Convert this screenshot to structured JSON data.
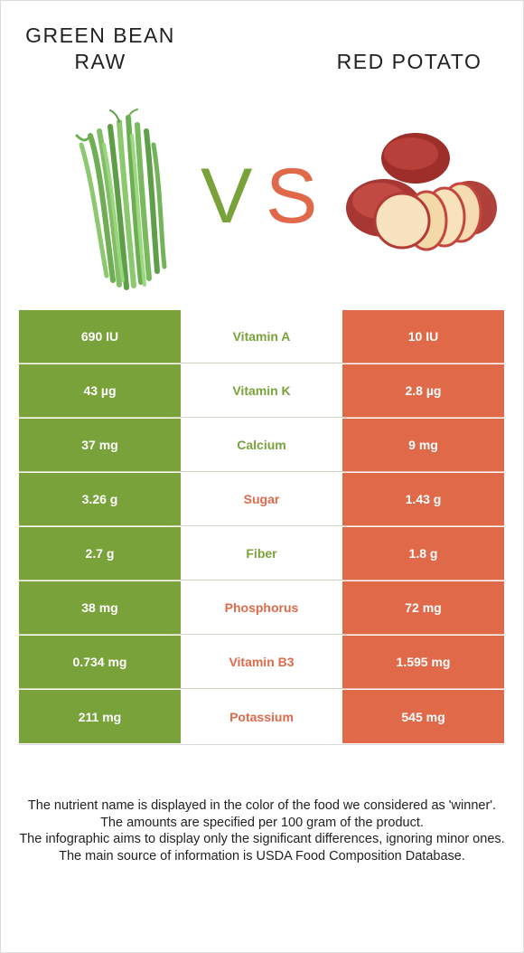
{
  "left_food": {
    "line1": "GREEN BEAN",
    "line2": "RAW"
  },
  "right_food": {
    "name": "RED POTATO"
  },
  "vs": {
    "v": "V",
    "s": "S"
  },
  "colors": {
    "green": "#79a23a",
    "red": "#e0694a"
  },
  "rows": [
    {
      "left": "690 IU",
      "nutrient": "Vitamin A",
      "right": "10 IU",
      "winner": "green"
    },
    {
      "left": "43 µg",
      "nutrient": "Vitamin K",
      "right": "2.8 µg",
      "winner": "green"
    },
    {
      "left": "37 mg",
      "nutrient": "Calcium",
      "right": "9 mg",
      "winner": "green"
    },
    {
      "left": "3.26 g",
      "nutrient": "Sugar",
      "right": "1.43 g",
      "winner": "red"
    },
    {
      "left": "2.7 g",
      "nutrient": "Fiber",
      "right": "1.8 g",
      "winner": "green"
    },
    {
      "left": "38 mg",
      "nutrient": "Phosphorus",
      "right": "72 mg",
      "winner": "red"
    },
    {
      "left": "0.734 mg",
      "nutrient": "Vitamin B3",
      "right": "1.595 mg",
      "winner": "red"
    },
    {
      "left": "211 mg",
      "nutrient": "Potassium",
      "right": "545 mg",
      "winner": "red"
    }
  ],
  "footnote": {
    "line1": "The nutrient name is displayed in the color of the food we considered as 'winner'.",
    "line2": "The amounts are specified per 100 gram of the product.",
    "line3": "The infographic aims to display only the significant differences, ignoring minor ones.",
    "line4": "The main source of information is USDA Food Composition Database."
  }
}
